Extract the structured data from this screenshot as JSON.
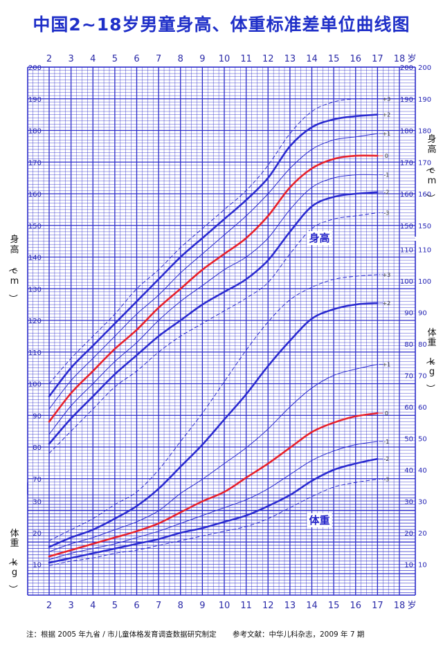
{
  "title": "中国2~18岁男童身高、体重标准差单位曲线图",
  "footnote": {
    "note": "注：根据 2005 年九省 / 市儿童体格发育调查数据研究制定",
    "reference": "参考文献：中华儿科杂志，2009 年 7 期"
  },
  "colors": {
    "grid": "#2727c8",
    "text": "#2424b4",
    "median": "#e8202a",
    "sd": "#2a2ad0"
  },
  "chart_data": {
    "type": "line",
    "title": "中国2~18岁男童身高、体重标准差单位曲线图",
    "x_unit": "岁",
    "x_ticks": [
      2,
      3,
      4,
      5,
      6,
      7,
      8,
      9,
      10,
      11,
      12,
      13,
      14,
      15,
      16,
      17,
      18
    ],
    "x_range": [
      2,
      18
    ],
    "height_panel": {
      "label": "身高",
      "axis_label_left": "身高（cm）",
      "axis_label_right": "身高（cm）",
      "ylim": [
        65,
        200
      ],
      "left_ticks": [
        70,
        80,
        90,
        100,
        110,
        120,
        130,
        140,
        150,
        160,
        170,
        180,
        190,
        200
      ],
      "right_ticks": [
        150,
        160,
        170,
        180,
        190,
        200
      ],
      "grid": "1 cm minor lines, 10 cm major lines",
      "series": [
        {
          "name": "+3",
          "style": "dashed",
          "x": [
            2,
            3,
            4,
            5,
            6,
            7,
            8,
            9,
            10,
            11,
            12,
            13,
            14,
            15,
            16,
            17
          ],
          "y": [
            100,
            108,
            115,
            122,
            130,
            136,
            143,
            149,
            155,
            161,
            169,
            179,
            186,
            189,
            190,
            190
          ]
        },
        {
          "name": "+2",
          "style": "thick",
          "x": [
            2,
            3,
            4,
            5,
            6,
            7,
            8,
            9,
            10,
            11,
            12,
            13,
            14,
            15,
            16,
            17
          ],
          "y": [
            96,
            105,
            112,
            119,
            126,
            133,
            140,
            146,
            152,
            158,
            165,
            175,
            181,
            183.5,
            184.5,
            185
          ]
        },
        {
          "name": "+1",
          "style": "thin",
          "x": [
            2,
            3,
            4,
            5,
            6,
            7,
            8,
            9,
            10,
            11,
            12,
            13,
            14,
            15,
            16,
            17
          ],
          "y": [
            92,
            101,
            108,
            115,
            122,
            128,
            135,
            141,
            147,
            153,
            160,
            168,
            174,
            177,
            178,
            179
          ]
        },
        {
          "name": "0",
          "style": "median",
          "x": [
            2,
            3,
            4,
            5,
            6,
            7,
            8,
            9,
            10,
            11,
            12,
            13,
            14,
            15,
            16,
            17
          ],
          "y": [
            88,
            97,
            104,
            111,
            117,
            124,
            130,
            136,
            141,
            146,
            153,
            162,
            168,
            171,
            172,
            172
          ]
        },
        {
          "name": "-1",
          "style": "thin",
          "x": [
            2,
            3,
            4,
            5,
            6,
            7,
            8,
            9,
            10,
            11,
            12,
            13,
            14,
            15,
            16,
            17
          ],
          "y": [
            84,
            93,
            100,
            107,
            113,
            120,
            126,
            131,
            136,
            140,
            146,
            155,
            162,
            165,
            166,
            166
          ]
        },
        {
          "name": "-2",
          "style": "thick",
          "x": [
            2,
            3,
            4,
            5,
            6,
            7,
            8,
            9,
            10,
            11,
            12,
            13,
            14,
            15,
            16,
            17
          ],
          "y": [
            81,
            89,
            96,
            103,
            109,
            115,
            120,
            125,
            129,
            133,
            139,
            148,
            156,
            159,
            160,
            160.5
          ]
        },
        {
          "name": "-3",
          "style": "dashed",
          "x": [
            2,
            3,
            4,
            5,
            6,
            7,
            8,
            9,
            10,
            11,
            12,
            13,
            14,
            15,
            16,
            17
          ],
          "y": [
            78,
            85,
            92,
            99,
            104,
            110,
            115,
            119,
            123,
            127,
            132,
            141,
            149,
            152,
            153,
            154
          ]
        }
      ]
    },
    "weight_panel": {
      "label": "体重",
      "axis_label_left": "体重（kg）",
      "axis_label_right": "体重（kg）",
      "ylim": [
        0,
        115
      ],
      "left_ticks": [
        10,
        20,
        30
      ],
      "right_ticks": [
        10,
        20,
        30,
        40,
        50,
        60,
        70,
        80,
        90,
        100,
        110
      ],
      "grid": "1 kg minor lines, 10 kg major lines",
      "series": [
        {
          "name": "+3",
          "style": "dashed",
          "x": [
            2,
            3,
            4,
            5,
            6,
            7,
            8,
            9,
            10,
            11,
            12,
            13,
            14,
            15,
            16,
            17
          ],
          "y": [
            17.5,
            21,
            24.5,
            29,
            33,
            40,
            49,
            58,
            68,
            78,
            87,
            94,
            98,
            100.5,
            101.5,
            102
          ]
        },
        {
          "name": "+2",
          "style": "thick",
          "x": [
            2,
            3,
            4,
            5,
            6,
            7,
            8,
            9,
            10,
            11,
            12,
            13,
            14,
            15,
            16,
            17
          ],
          "y": [
            15.5,
            18.5,
            21,
            24.5,
            28.5,
            34,
            41,
            48,
            56,
            64,
            73,
            81,
            88,
            91,
            92.5,
            93
          ]
        },
        {
          "name": "+1",
          "style": "thin",
          "x": [
            2,
            3,
            4,
            5,
            6,
            7,
            8,
            9,
            10,
            11,
            12,
            13,
            14,
            15,
            16,
            17
          ],
          "y": [
            14,
            16.5,
            18.5,
            21,
            23.5,
            27,
            32.5,
            37,
            42,
            47,
            53,
            60,
            66,
            70,
            72,
            73.5
          ]
        },
        {
          "name": "0",
          "style": "median",
          "x": [
            2,
            3,
            4,
            5,
            6,
            7,
            8,
            9,
            10,
            11,
            12,
            13,
            14,
            15,
            16,
            17
          ],
          "y": [
            12.5,
            14.5,
            16.5,
            18.5,
            20.5,
            23,
            26.5,
            30,
            33,
            37.5,
            42,
            47,
            52,
            55,
            57,
            58
          ]
        },
        {
          "name": "-1",
          "style": "thin",
          "x": [
            2,
            3,
            4,
            5,
            6,
            7,
            8,
            9,
            10,
            11,
            12,
            13,
            14,
            15,
            16,
            17
          ],
          "y": [
            11.5,
            13.5,
            15,
            16.5,
            18.5,
            20.5,
            23,
            25.5,
            28,
            30.5,
            34,
            38.5,
            43,
            46,
            48,
            49
          ]
        },
        {
          "name": "-2",
          "style": "thick",
          "x": [
            2,
            3,
            4,
            5,
            6,
            7,
            8,
            9,
            10,
            11,
            12,
            13,
            14,
            15,
            16,
            17
          ],
          "y": [
            10.5,
            12,
            13.5,
            15,
            16.5,
            18,
            20,
            21.5,
            23.5,
            25.5,
            28.5,
            32,
            36.5,
            40,
            42,
            43.5
          ]
        },
        {
          "name": "-3",
          "style": "dashed",
          "x": [
            2,
            3,
            4,
            5,
            6,
            7,
            8,
            9,
            10,
            11,
            12,
            13,
            14,
            15,
            16,
            17
          ],
          "y": [
            9.5,
            11,
            12,
            13.5,
            14.5,
            16,
            17.5,
            19,
            20.5,
            22,
            24.5,
            28,
            31.5,
            34.5,
            36,
            37
          ]
        }
      ]
    }
  }
}
